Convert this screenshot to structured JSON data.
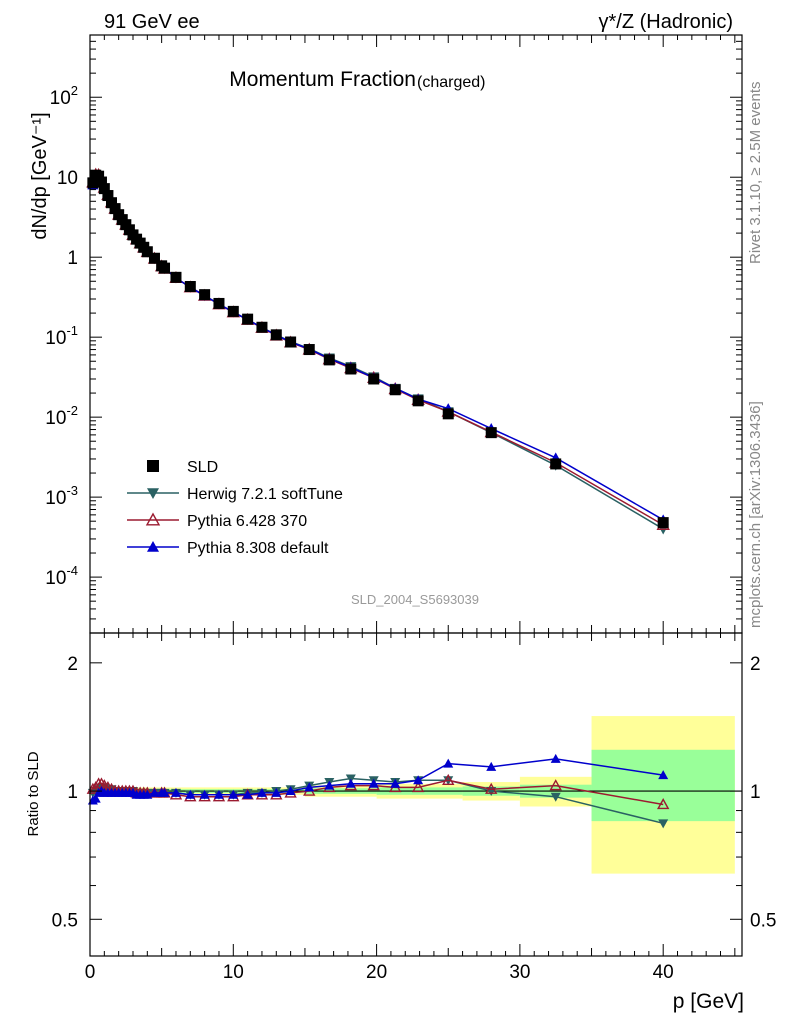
{
  "header": {
    "left": "91 GeV ee",
    "right": "γ*/Z (Hadronic)"
  },
  "side": {
    "rivet": "Rivet 3.1.10, ≥ 2.5M events",
    "mcplots": "mcplots.cern.ch [arXiv:1306.3436]"
  },
  "chart_data": [
    {
      "type": "scatter",
      "panel": "main",
      "title": "Momentum Fraction",
      "title_suffix": "(charged)",
      "ylabel": "dN/dp [GeV⁻¹]",
      "xlabel": "p [GeV]",
      "yscale": "log",
      "xlim": [
        0,
        45.5
      ],
      "ylim": [
        2e-05,
        600
      ],
      "analysis_label": "SLD_2004_S5693039",
      "x_ticks": [
        0,
        10,
        20,
        30,
        40
      ],
      "y_ticks": [
        {
          "value": 0.0001,
          "label": "10^-4"
        },
        {
          "value": 0.001,
          "label": "10^-3"
        },
        {
          "value": 0.01,
          "label": "10^-2"
        },
        {
          "value": 0.1,
          "label": "10^-1"
        },
        {
          "value": 1,
          "label": "1"
        },
        {
          "value": 10,
          "label": "10"
        },
        {
          "value": 100,
          "label": "10^2"
        }
      ],
      "legend_position": "lower-left",
      "x": [
        0.2,
        0.4,
        0.6,
        0.8,
        1.0,
        1.25,
        1.5,
        1.75,
        2.0,
        2.25,
        2.5,
        2.75,
        3.0,
        3.25,
        3.5,
        3.75,
        4.0,
        4.5,
        5.0,
        5.2,
        6.0,
        7.0,
        8.0,
        9.0,
        10.0,
        11.0,
        12.0,
        13.0,
        14.0,
        15.3,
        16.7,
        18.2,
        19.8,
        21.3,
        22.9,
        25.0,
        28.0,
        32.5,
        40.0
      ],
      "series": [
        {
          "name": "SLD",
          "color": "#000000",
          "marker": "square",
          "values": [
            8.5,
            10.6,
            10.3,
            8.7,
            7.2,
            5.9,
            4.8,
            4.05,
            3.4,
            2.95,
            2.55,
            2.2,
            1.9,
            1.68,
            1.5,
            1.33,
            1.17,
            0.97,
            0.78,
            0.73,
            0.56,
            0.43,
            0.34,
            0.264,
            0.21,
            0.168,
            0.133,
            0.107,
            0.087,
            0.07,
            0.052,
            0.04,
            0.03,
            0.022,
            0.016,
            0.011,
            0.0064,
            0.0026,
            0.00048
          ]
        },
        {
          "name": "Herwig 7.2.1 softTune",
          "color": "#2a6163",
          "marker": "triangle-down",
          "values": [
            8.4,
            10.5,
            10.4,
            8.9,
            7.3,
            5.95,
            4.85,
            4.05,
            3.4,
            2.95,
            2.55,
            2.2,
            1.9,
            1.67,
            1.49,
            1.32,
            1.16,
            0.96,
            0.77,
            0.72,
            0.55,
            0.42,
            0.33,
            0.259,
            0.206,
            0.166,
            0.132,
            0.107,
            0.088,
            0.072,
            0.055,
            0.043,
            0.032,
            0.023,
            0.017,
            0.0117,
            0.0064,
            0.0025,
            0.0004
          ]
        },
        {
          "name": "Pythia 6.428 370",
          "color": "#9b1b30",
          "marker": "triangle-open",
          "values": [
            8.6,
            10.8,
            10.7,
            9.0,
            7.4,
            6.0,
            4.85,
            4.05,
            3.4,
            2.95,
            2.55,
            2.2,
            1.9,
            1.67,
            1.49,
            1.32,
            1.16,
            0.96,
            0.77,
            0.72,
            0.55,
            0.42,
            0.33,
            0.258,
            0.205,
            0.165,
            0.131,
            0.105,
            0.086,
            0.07,
            0.053,
            0.041,
            0.031,
            0.0225,
            0.0164,
            0.0117,
            0.0065,
            0.0027,
            0.00045
          ]
        },
        {
          "name": "Pythia 8.308 default",
          "color": "#0000cc",
          "marker": "triangle-up",
          "values": [
            8.0,
            10.2,
            10.2,
            8.7,
            7.15,
            5.85,
            4.75,
            4.0,
            3.36,
            2.92,
            2.52,
            2.17,
            1.88,
            1.65,
            1.47,
            1.31,
            1.15,
            0.96,
            0.77,
            0.72,
            0.55,
            0.42,
            0.33,
            0.259,
            0.206,
            0.165,
            0.132,
            0.106,
            0.087,
            0.071,
            0.054,
            0.042,
            0.031,
            0.023,
            0.0168,
            0.0128,
            0.0072,
            0.0031,
            0.00052
          ]
        }
      ]
    },
    {
      "type": "line",
      "panel": "ratio",
      "ylabel": "Ratio to SLD",
      "xlabel": "p [GeV]",
      "xlim": [
        0,
        45.5
      ],
      "ylim": [
        0.41,
        2.35
      ],
      "y_ticks": [
        {
          "value": 0.5,
          "label": "0.5"
        },
        {
          "value": 1,
          "label": "1"
        },
        {
          "value": 2,
          "label": "2"
        }
      ],
      "x": [
        0.2,
        0.4,
        0.6,
        0.8,
        1.0,
        1.25,
        1.5,
        1.75,
        2.0,
        2.25,
        2.5,
        2.75,
        3.0,
        3.25,
        3.5,
        3.75,
        4.0,
        4.5,
        5.0,
        5.2,
        6.0,
        7.0,
        8.0,
        9.0,
        10.0,
        11.0,
        12.0,
        13.0,
        14.0,
        15.3,
        16.7,
        18.2,
        19.8,
        21.3,
        22.9,
        25.0,
        28.0,
        32.5,
        40.0
      ],
      "uncertainty_bands": [
        {
          "name": "stat",
          "color": "#99ff99"
        },
        {
          "name": "stat+syst",
          "color": "#ffff99"
        }
      ],
      "bands": [
        {
          "x0": 0,
          "x1": 15,
          "inner": [
            0.99,
            1.01
          ],
          "outer": [
            0.98,
            1.02
          ]
        },
        {
          "x0": 15,
          "x1": 20,
          "inner": [
            0.985,
            1.015
          ],
          "outer": [
            0.97,
            1.03
          ]
        },
        {
          "x0": 20,
          "x1": 26,
          "inner": [
            0.98,
            1.02
          ],
          "outer": [
            0.96,
            1.04
          ]
        },
        {
          "x0": 26,
          "x1": 30,
          "inner": [
            0.975,
            1.025
          ],
          "outer": [
            0.95,
            1.05
          ]
        },
        {
          "x0": 30,
          "x1": 35,
          "inner": [
            0.965,
            1.035
          ],
          "outer": [
            0.92,
            1.08
          ]
        },
        {
          "x0": 35,
          "x1": 45,
          "inner": [
            0.85,
            1.25
          ],
          "outer": [
            0.64,
            1.5
          ]
        }
      ],
      "series": [
        {
          "name": "Herwig 7.2.1 softTune",
          "color": "#2a6163",
          "marker": "triangle-down",
          "values": [
            0.99,
            1.0,
            1.01,
            1.02,
            1.02,
            1.01,
            1.01,
            1.0,
            1.0,
            1.0,
            1.0,
            1.0,
            1.0,
            0.99,
            0.99,
            0.99,
            0.99,
            0.99,
            0.99,
            0.99,
            0.99,
            0.98,
            0.98,
            0.98,
            0.98,
            0.99,
            0.99,
            1.0,
            1.01,
            1.03,
            1.05,
            1.07,
            1.06,
            1.05,
            1.06,
            1.06,
            1.0,
            0.97,
            0.84
          ]
        },
        {
          "name": "Pythia 6.428 370",
          "color": "#9b1b30",
          "marker": "triangle-open",
          "values": [
            1.01,
            1.02,
            1.04,
            1.04,
            1.03,
            1.02,
            1.01,
            1.0,
            1.0,
            1.0,
            1.0,
            1.0,
            1.0,
            0.99,
            0.99,
            0.99,
            0.99,
            0.99,
            0.99,
            0.99,
            0.98,
            0.97,
            0.97,
            0.97,
            0.97,
            0.98,
            0.98,
            0.98,
            0.99,
            1.0,
            1.02,
            1.03,
            1.03,
            1.02,
            1.02,
            1.06,
            1.01,
            1.03,
            0.93
          ]
        },
        {
          "name": "Pythia 8.308 default",
          "color": "#0000cc",
          "marker": "triangle-up",
          "values": [
            0.95,
            0.96,
            0.99,
            1.0,
            0.99,
            0.99,
            0.99,
            0.99,
            0.99,
            0.99,
            0.99,
            0.99,
            0.99,
            0.98,
            0.98,
            0.98,
            0.98,
            0.99,
            0.99,
            0.99,
            0.99,
            0.98,
            0.98,
            0.98,
            0.98,
            0.98,
            0.99,
            0.99,
            1.0,
            1.02,
            1.03,
            1.04,
            1.04,
            1.04,
            1.06,
            1.16,
            1.14,
            1.19,
            1.09
          ]
        }
      ]
    }
  ]
}
